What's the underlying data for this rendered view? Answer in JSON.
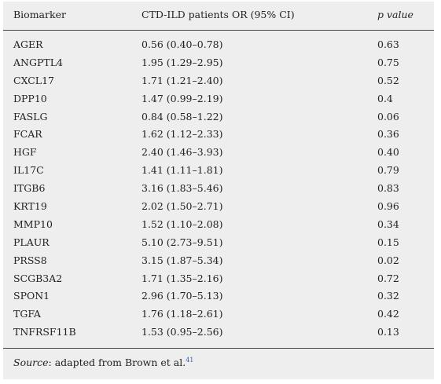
{
  "table": {
    "headers": {
      "biomarker": "Biomarker",
      "or": "CTD-ILD patients OR (95% CI)",
      "pvalue": "p value"
    },
    "rows": [
      {
        "biomarker": "AGER",
        "or": "0.56 (0.40–0.78)",
        "pvalue": "0.63"
      },
      {
        "biomarker": "ANGPTL4",
        "or": "1.95 (1.29–2.95)",
        "pvalue": "0.75"
      },
      {
        "biomarker": "CXCL17",
        "or": "1.71 (1.21–2.40)",
        "pvalue": "0.52"
      },
      {
        "biomarker": "DPP10",
        "or": "1.47 (0.99–2.19)",
        "pvalue": "0.4"
      },
      {
        "biomarker": "FASLG",
        "or": "0.84 (0.58–1.22)",
        "pvalue": "0.06"
      },
      {
        "biomarker": "FCAR",
        "or": "1.62 (1.12–2.33)",
        "pvalue": "0.36"
      },
      {
        "biomarker": "HGF",
        "or": "2.40 (1.46–3.93)",
        "pvalue": "0.40"
      },
      {
        "biomarker": "IL17C",
        "or": "1.41 (1.11–1.81)",
        "pvalue": "0.79"
      },
      {
        "biomarker": "ITGB6",
        "or": "3.16 (1.83–5.46)",
        "pvalue": "0.83"
      },
      {
        "biomarker": "KRT19",
        "or": "2.02 (1.50–2.71)",
        "pvalue": "0.96"
      },
      {
        "biomarker": "MMP10",
        "or": "1.52 (1.10–2.08)",
        "pvalue": "0.34"
      },
      {
        "biomarker": "PLAUR",
        "or": "5.10 (2.73–9.51)",
        "pvalue": "0.15"
      },
      {
        "biomarker": "PRSS8",
        "or": "3.15 (1.87–5.34)",
        "pvalue": "0.02"
      },
      {
        "biomarker": "SCGB3A2",
        "or": "1.71 (1.35–2.16)",
        "pvalue": "0.72"
      },
      {
        "biomarker": "SPON1",
        "or": "2.96 (1.70–5.13)",
        "pvalue": "0.32"
      },
      {
        "biomarker": "TGFA",
        "or": "1.76 (1.18–2.61)",
        "pvalue": "0.42"
      },
      {
        "biomarker": "TNFRSF11B",
        "or": "1.53 (0.95–2.56)",
        "pvalue": "0.13"
      }
    ],
    "source": {
      "label": "Source",
      "text": ": adapted from Brown et al.",
      "ref": "41"
    }
  }
}
